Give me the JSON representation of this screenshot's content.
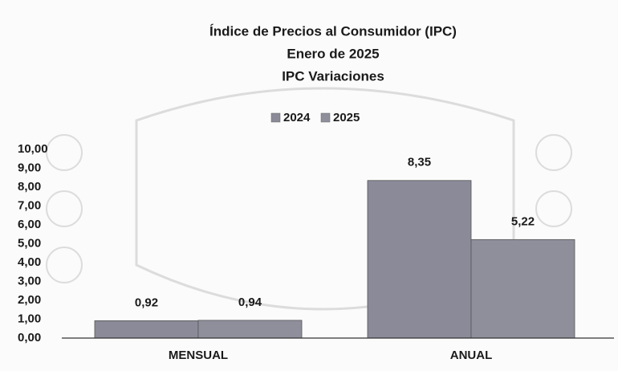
{
  "chart_data": {
    "type": "bar",
    "title_lines": [
      "Índice de Precios al Consumidor (IPC)",
      "Enero de 2025",
      "IPC Variaciones"
    ],
    "categories": [
      "MENSUAL",
      "ANUAL"
    ],
    "series": [
      {
        "name": "2024",
        "color": "#8a8a98",
        "values": [
          0.92,
          8.35
        ],
        "value_labels": [
          "0,92",
          "8,35"
        ]
      },
      {
        "name": "2025",
        "color": "#8f8f9c",
        "values": [
          0.94,
          5.22
        ],
        "value_labels": [
          "0,94",
          "5,22"
        ]
      }
    ],
    "ylim": [
      0,
      10
    ],
    "yticks": [
      {
        "value": 0,
        "label": "0,00"
      },
      {
        "value": 1,
        "label": "1,00"
      },
      {
        "value": 2,
        "label": "2,00"
      },
      {
        "value": 3,
        "label": "3,00"
      },
      {
        "value": 4,
        "label": "4,00"
      },
      {
        "value": 5,
        "label": "5,00"
      },
      {
        "value": 6,
        "label": "6,00"
      },
      {
        "value": 7,
        "label": "7,00"
      },
      {
        "value": 8,
        "label": "8,00"
      },
      {
        "value": 9,
        "label": "9,00"
      },
      {
        "value": 10,
        "label": "10,00"
      }
    ],
    "legend": "top"
  }
}
